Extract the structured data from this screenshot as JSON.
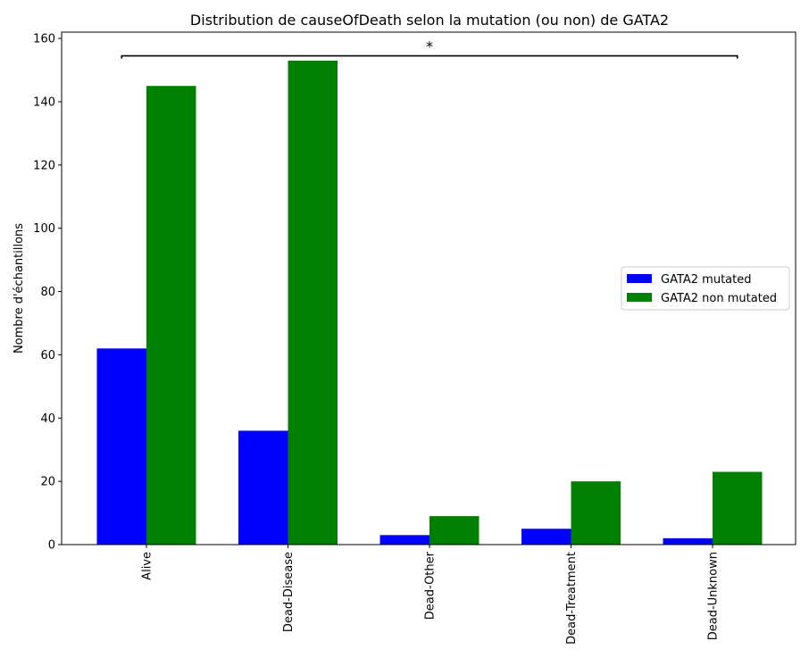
{
  "chart_data": {
    "type": "bar",
    "title": "Distribution de causeOfDeath selon la mutation (ou non) de GATA2",
    "xlabel": "",
    "ylabel": "Nombre d'échantillons",
    "categories": [
      "Alive",
      "Dead-Disease",
      "Dead-Other",
      "Dead-Treatment",
      "Dead-Unknown"
    ],
    "series": [
      {
        "name": "GATA2 mutated",
        "values": [
          62,
          36,
          3,
          5,
          2
        ],
        "color": "#0000ff"
      },
      {
        "name": "GATA2 non mutated",
        "values": [
          145,
          153,
          9,
          20,
          23
        ],
        "color": "#008000"
      }
    ],
    "ylim": [
      0,
      162
    ],
    "yticks": [
      0,
      20,
      40,
      60,
      80,
      100,
      120,
      140,
      160
    ],
    "grid": false,
    "legend_position": "center-right",
    "significance": {
      "from_category": "Alive",
      "to_category": "Dead-Unknown",
      "level": 154.5,
      "label": "*"
    }
  }
}
